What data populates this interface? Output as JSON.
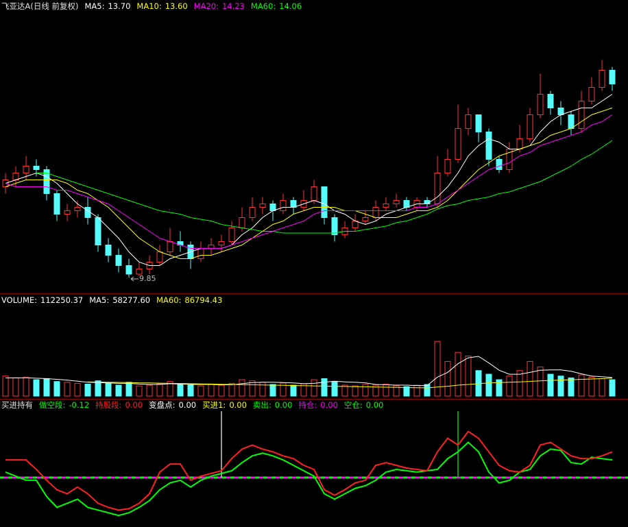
{
  "chart_data": [
    {
      "type": "candlestick",
      "title": "飞亚达A(日线 前复权)",
      "up_color": "#ff3232",
      "down_color": "#54fcfc",
      "ylim": [
        9.45,
        17.65
      ],
      "open": [
        12.5,
        12.7,
        12.9,
        13.1,
        13.0,
        12.3,
        11.7,
        11.8,
        11.9,
        11.6,
        10.8,
        10.5,
        10.2,
        9.95,
        10.1,
        10.3,
        10.6,
        10.9,
        10.8,
        10.4,
        10.7,
        10.8,
        10.9,
        11.3,
        11.6,
        11.9,
        12.0,
        11.8,
        12.1,
        11.9,
        12.1,
        12.5,
        11.6,
        11.1,
        11.3,
        11.5,
        11.6,
        11.9,
        12.0,
        12.1,
        11.9,
        12.1,
        12.0,
        12.9,
        13.3,
        14.2,
        14.6,
        14.1,
        13.3,
        13.0,
        13.6,
        13.9,
        14.6,
        15.2,
        14.8,
        14.6,
        14.2,
        15.0,
        15.4,
        15.9
      ],
      "high": [
        12.9,
        13.1,
        13.4,
        13.3,
        13.1,
        12.4,
        12.0,
        12.1,
        12.2,
        11.7,
        11.0,
        10.7,
        10.4,
        10.3,
        10.5,
        10.8,
        11.3,
        11.2,
        10.9,
        10.9,
        11.0,
        11.1,
        11.5,
        11.9,
        12.2,
        12.2,
        12.1,
        12.3,
        12.2,
        12.4,
        12.7,
        12.5,
        11.7,
        11.5,
        11.7,
        11.8,
        12.1,
        12.2,
        12.3,
        12.2,
        12.2,
        12.2,
        13.4,
        13.6,
        14.9,
        14.8,
        14.6,
        14.2,
        13.4,
        13.8,
        14.3,
        14.8,
        15.8,
        15.3,
        15.0,
        14.7,
        15.3,
        15.7,
        16.2,
        16.0
      ],
      "low": [
        12.3,
        12.5,
        12.7,
        12.8,
        12.1,
        11.5,
        11.5,
        11.6,
        11.4,
        10.6,
        10.3,
        10.0,
        9.85,
        9.9,
        9.95,
        10.2,
        10.5,
        10.6,
        10.1,
        10.3,
        10.5,
        10.6,
        10.8,
        11.2,
        11.5,
        11.7,
        11.5,
        11.7,
        11.7,
        11.8,
        12.0,
        11.4,
        10.9,
        11.0,
        11.2,
        11.4,
        11.5,
        11.8,
        11.9,
        11.8,
        11.8,
        11.9,
        11.9,
        12.8,
        13.2,
        14.0,
        13.8,
        13.1,
        12.9,
        12.9,
        13.5,
        13.8,
        14.5,
        14.6,
        14.3,
        14.0,
        14.1,
        14.9,
        15.3,
        15.3
      ],
      "close": [
        12.7,
        12.9,
        13.1,
        13.0,
        12.3,
        11.7,
        11.8,
        11.9,
        11.6,
        10.8,
        10.5,
        10.2,
        9.95,
        10.1,
        10.3,
        10.6,
        10.9,
        10.8,
        10.4,
        10.7,
        10.8,
        10.9,
        11.3,
        11.6,
        11.9,
        12.0,
        11.8,
        12.1,
        11.9,
        12.1,
        12.5,
        11.6,
        11.1,
        11.3,
        11.5,
        11.6,
        11.9,
        12.0,
        12.1,
        11.9,
        12.1,
        12.0,
        12.9,
        13.3,
        14.2,
        14.6,
        14.1,
        13.3,
        13.0,
        13.6,
        13.9,
        14.6,
        15.2,
        14.8,
        14.6,
        14.2,
        15.0,
        15.4,
        15.9,
        15.5
      ],
      "series": [
        {
          "name": "MA5:",
          "color": "#ffffff",
          "current": 13.7,
          "current_label": "13.70",
          "values": [
            12.6,
            12.7,
            12.8,
            12.9,
            12.8,
            12.6,
            12.3,
            12.0,
            11.8,
            11.6,
            11.3,
            11.0,
            10.6,
            10.3,
            10.2,
            10.2,
            10.4,
            10.5,
            10.6,
            10.7,
            10.7,
            10.7,
            10.8,
            11.1,
            11.3,
            11.6,
            11.8,
            11.9,
            11.9,
            12.0,
            12.1,
            12.0,
            11.8,
            11.7,
            11.5,
            11.4,
            11.5,
            11.7,
            11.8,
            11.9,
            12.0,
            12.0,
            12.2,
            12.5,
            12.9,
            13.4,
            13.7,
            13.9,
            13.8,
            13.6,
            13.6,
            13.7,
            14.1,
            14.4,
            14.6,
            14.7,
            14.8,
            14.8,
            15.0,
            15.2
          ]
        },
        {
          "name": "MA10:",
          "color": "#ffff00",
          "current": 13.6,
          "current_label": "13.60",
          "values": [
            12.5,
            12.6,
            12.7,
            12.7,
            12.7,
            12.7,
            12.6,
            12.4,
            12.3,
            12.1,
            11.9,
            11.6,
            11.3,
            11.0,
            10.8,
            10.6,
            10.5,
            10.4,
            10.4,
            10.5,
            10.5,
            10.6,
            10.7,
            10.8,
            11.0,
            11.2,
            11.4,
            11.5,
            11.7,
            11.8,
            11.9,
            11.9,
            11.9,
            11.8,
            11.8,
            11.7,
            11.6,
            11.6,
            11.6,
            11.7,
            11.8,
            11.8,
            11.9,
            12.1,
            12.4,
            12.7,
            13.0,
            13.2,
            13.4,
            13.5,
            13.6,
            13.7,
            13.8,
            14.0,
            14.1,
            14.2,
            14.4,
            14.6,
            14.7,
            14.8
          ]
        },
        {
          "name": "MA20:",
          "color": "#ff00ff",
          "current": 14.23,
          "current_label": "14.23",
          "values": [
            12.6,
            12.5,
            12.5,
            12.5,
            12.5,
            12.4,
            12.4,
            12.3,
            12.2,
            12.1,
            12.0,
            11.8,
            11.6,
            11.4,
            11.2,
            11.0,
            10.9,
            10.8,
            10.7,
            10.7,
            10.7,
            10.7,
            10.8,
            10.9,
            11.0,
            11.1,
            11.2,
            11.3,
            11.4,
            11.5,
            11.7,
            11.8,
            11.8,
            11.8,
            11.8,
            11.8,
            11.8,
            11.8,
            11.8,
            11.8,
            11.9,
            11.9,
            12.0,
            12.2,
            12.4,
            12.6,
            12.8,
            13.0,
            13.1,
            13.2,
            13.4,
            13.5,
            13.7,
            13.8,
            13.9,
            14.0,
            14.1,
            14.3,
            14.4,
            14.6
          ]
        },
        {
          "name": "MA60:",
          "color": "#00ff00",
          "current": 14.06,
          "current_label": "14.06",
          "values": [
            null,
            null,
            null,
            12.9,
            12.9,
            12.8,
            12.7,
            12.6,
            12.5,
            12.4,
            12.3,
            12.2,
            12.1,
            12.0,
            11.9,
            11.8,
            11.75,
            11.7,
            11.6,
            11.55,
            11.5,
            11.4,
            11.35,
            11.3,
            11.25,
            11.2,
            11.2,
            11.15,
            11.15,
            11.15,
            11.15,
            11.15,
            11.15,
            11.2,
            11.2,
            11.25,
            11.3,
            11.35,
            11.45,
            11.5,
            11.6,
            11.7,
            11.85,
            11.95,
            12.0,
            12.1,
            12.15,
            12.2,
            12.3,
            12.35,
            12.45,
            12.55,
            12.65,
            12.8,
            12.95,
            13.1,
            13.3,
            13.45,
            13.65,
            13.85
          ]
        }
      ],
      "low_mark": {
        "index": 12,
        "value": 9.85,
        "label": "9.85",
        "color": "#c0c0c0"
      }
    },
    {
      "type": "volume",
      "name": "VOLUME:",
      "current": 112250.37,
      "current_label": "112250.37",
      "ylim": [
        0,
        250000
      ],
      "values": [
        55000,
        50000,
        52000,
        45000,
        48000,
        40000,
        38000,
        35000,
        33000,
        42000,
        36000,
        30000,
        38000,
        28000,
        30000,
        34000,
        40000,
        32000,
        30000,
        28000,
        33000,
        30000,
        35000,
        45000,
        42000,
        38000,
        32000,
        36000,
        30000,
        34000,
        45000,
        48000,
        40000,
        30000,
        28000,
        32000,
        30000,
        33000,
        28000,
        26000,
        30000,
        32000,
        150000,
        95000,
        120000,
        110000,
        70000,
        60000,
        45000,
        55000,
        70000,
        95000,
        80000,
        60000,
        55000,
        50000,
        58000,
        52000,
        48000,
        45000
      ],
      "series": [
        {
          "name": "MA5:",
          "color": "#ffffff",
          "current": 58277.6,
          "current_label": "58277.60",
          "values": [
            50000,
            50000,
            50000,
            49000,
            48000,
            46000,
            44000,
            41000,
            38000,
            37000,
            36000,
            35000,
            35000,
            33000,
            32000,
            32000,
            34000,
            33000,
            32000,
            32000,
            32000,
            31000,
            31000,
            34000,
            37000,
            38000,
            38000,
            37000,
            36000,
            34000,
            35000,
            38000,
            41000,
            39000,
            38000,
            36000,
            32000,
            31000,
            30000,
            30000,
            29000,
            29000,
            52000,
            65000,
            89000,
            105000,
            109000,
            91000,
            71000,
            60000,
            60000,
            65000,
            71000,
            72000,
            72000,
            68000,
            61000,
            55000,
            53000,
            51000
          ]
        },
        {
          "name": "MA60:",
          "color": "#ffff00",
          "current": 86794.43,
          "current_label": "86794.43",
          "values": [
            null,
            null,
            null,
            null,
            null,
            null,
            null,
            null,
            39000,
            38500,
            38000,
            37500,
            37000,
            36500,
            36000,
            35500,
            35000,
            34500,
            34000,
            33500,
            33000,
            32500,
            32000,
            31500,
            31000,
            30500,
            30000,
            29500,
            29000,
            28500,
            28000,
            27500,
            27000,
            26500,
            26000,
            25500,
            25000,
            24500,
            24000,
            23500,
            23000,
            22500,
            25000,
            27000,
            30000,
            32000,
            34000,
            36000,
            37000,
            38000,
            39000,
            40500,
            42000,
            43000,
            44000,
            45000,
            46000,
            47000,
            48000,
            49000
          ]
        }
      ]
    },
    {
      "type": "line",
      "title": "买进持有",
      "ylim": [
        -0.35,
        0.5
      ],
      "baseline": 0,
      "series": [
        {
          "name": "做空段:",
          "color": "#00ff00",
          "current": -0.12,
          "current_label": "-0.12",
          "values": [
            0.04,
            0.01,
            -0.02,
            -0.02,
            -0.14,
            -0.22,
            -0.19,
            -0.16,
            -0.22,
            -0.24,
            -0.26,
            -0.28,
            -0.26,
            -0.22,
            -0.17,
            -0.09,
            -0.04,
            -0.02,
            -0.07,
            -0.02,
            0.01,
            0.03,
            0.05,
            0.11,
            0.16,
            0.18,
            0.16,
            0.13,
            0.09,
            0.05,
            0.01,
            -0.12,
            -0.16,
            -0.12,
            -0.08,
            -0.06,
            -0.02,
            0.04,
            0.06,
            0.05,
            0.04,
            0.05,
            0.06,
            0.14,
            0.19,
            0.26,
            0.19,
            0.04,
            -0.04,
            -0.02,
            0.04,
            0.06,
            0.16,
            0.21,
            0.2,
            0.11,
            0.1,
            0.15,
            0.14,
            0.13
          ]
        },
        {
          "name": "持股段:",
          "color": "#ff2020",
          "current": 0,
          "current_label": "0.00",
          "values": [
            0.13,
            0.13,
            0.13,
            0.06,
            -0.02,
            -0.09,
            -0.12,
            -0.07,
            -0.12,
            -0.19,
            -0.22,
            -0.24,
            -0.23,
            -0.19,
            -0.12,
            0.04,
            0.1,
            0.1,
            -0.02,
            0.01,
            0.03,
            0.05,
            0.14,
            0.21,
            0.24,
            0.21,
            0.19,
            0.16,
            0.14,
            0.09,
            0.06,
            -0.09,
            -0.13,
            -0.09,
            -0.04,
            -0.02,
            0.09,
            0.11,
            0.09,
            0.07,
            0.06,
            0.05,
            0.19,
            0.29,
            0.24,
            0.34,
            0.29,
            0.19,
            0.09,
            0.05,
            0.04,
            0.09,
            0.24,
            0.26,
            0.21,
            0.16,
            0.14,
            0.14,
            0.16,
            0.19
          ]
        }
      ],
      "legend": [
        {
          "name": "变盘点:",
          "color": "#ffffff",
          "value": 0,
          "label": "0.00"
        },
        {
          "name": "买进1:",
          "color": "#ffff00",
          "value": 0,
          "label": "0.00"
        },
        {
          "name": "卖出:",
          "color": "#00ff00",
          "value": 0,
          "label": "0.00"
        },
        {
          "name": "持仓:",
          "color": "#ff00ff",
          "value": 0,
          "label": "0.00"
        },
        {
          "name": "空仓:",
          "color": "#00ff00",
          "value": 0,
          "label": "0.00"
        }
      ],
      "markers": [
        {
          "index": 21,
          "value": 0.49,
          "color": "#ffffff"
        },
        {
          "index": 44,
          "value": 0.49,
          "color": "#00ff00"
        }
      ]
    }
  ]
}
